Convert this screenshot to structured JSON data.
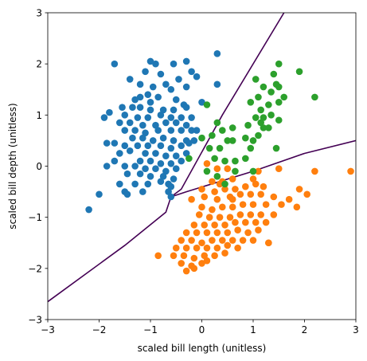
{
  "chart_data": {
    "type": "scatter",
    "title": "",
    "xlabel": "scaled bill length (unitless)",
    "ylabel": "scaled bill depth (unitless)",
    "xlim": [
      -3,
      3
    ],
    "ylim": [
      -3,
      3
    ],
    "xticks": [
      -3,
      -2,
      -1,
      0,
      1,
      2,
      3
    ],
    "yticks": [
      -3,
      -2,
      -1,
      0,
      1,
      2,
      3
    ],
    "grid": false,
    "legend": "none",
    "series": [
      {
        "color": "#1f77b4",
        "points": [
          [
            -1.7,
            2.0
          ],
          [
            -1.0,
            2.05
          ],
          [
            -0.9,
            2.0
          ],
          [
            -0.55,
            2.0
          ],
          [
            -0.3,
            2.05
          ],
          [
            -0.2,
            1.85
          ],
          [
            -0.1,
            1.75
          ],
          [
            0.3,
            2.2
          ],
          [
            -1.4,
            1.7
          ],
          [
            -1.1,
            1.85
          ],
          [
            -0.8,
            1.8
          ],
          [
            -0.45,
            1.7
          ],
          [
            -0.7,
            1.6
          ],
          [
            -1.2,
            1.6
          ],
          [
            -0.95,
            1.55
          ],
          [
            -0.3,
            1.55
          ],
          [
            -0.6,
            1.5
          ],
          [
            -1.2,
            1.35
          ],
          [
            -1.05,
            1.4
          ],
          [
            -0.85,
            1.35
          ],
          [
            -0.5,
            1.3
          ],
          [
            -0.35,
            1.2
          ],
          [
            -1.3,
            1.3
          ],
          [
            0.0,
            1.25
          ],
          [
            0.3,
            1.6
          ],
          [
            -1.55,
            1.15
          ],
          [
            -1.35,
            1.15
          ],
          [
            -1.2,
            1.15
          ],
          [
            -1.0,
            1.1
          ],
          [
            -0.75,
            1.1
          ],
          [
            -0.55,
            1.1
          ],
          [
            -0.3,
            1.15
          ],
          [
            -1.8,
            1.05
          ],
          [
            -1.5,
            1.0
          ],
          [
            -1.25,
            0.95
          ],
          [
            -1.05,
            0.95
          ],
          [
            -0.8,
            1.0
          ],
          [
            -0.6,
            0.95
          ],
          [
            -0.4,
            0.95
          ],
          [
            -0.2,
            0.95
          ],
          [
            -1.9,
            0.95
          ],
          [
            -1.6,
            0.85
          ],
          [
            -1.4,
            0.85
          ],
          [
            -1.15,
            0.8
          ],
          [
            -0.9,
            0.8
          ],
          [
            -0.7,
            0.85
          ],
          [
            -0.5,
            0.85
          ],
          [
            -0.3,
            0.8
          ],
          [
            -1.5,
            0.7
          ],
          [
            -1.3,
            0.7
          ],
          [
            -1.1,
            0.65
          ],
          [
            -0.85,
            0.7
          ],
          [
            -0.6,
            0.7
          ],
          [
            -0.4,
            0.7
          ],
          [
            -0.2,
            0.7
          ],
          [
            -0.1,
            0.7
          ],
          [
            -1.35,
            0.55
          ],
          [
            -1.15,
            0.55
          ],
          [
            -0.95,
            0.5
          ],
          [
            -0.75,
            0.55
          ],
          [
            -0.55,
            0.5
          ],
          [
            -0.3,
            0.5
          ],
          [
            -1.7,
            0.45
          ],
          [
            -1.5,
            0.4
          ],
          [
            -1.25,
            0.4
          ],
          [
            -1.05,
            0.4
          ],
          [
            -0.8,
            0.4
          ],
          [
            -0.6,
            0.35
          ],
          [
            -0.4,
            0.4
          ],
          [
            -1.85,
            0.45
          ],
          [
            -1.6,
            0.25
          ],
          [
            -1.4,
            0.3
          ],
          [
            -1.1,
            0.25
          ],
          [
            -0.9,
            0.25
          ],
          [
            -0.7,
            0.2
          ],
          [
            -0.5,
            0.2
          ],
          [
            -0.3,
            0.25
          ],
          [
            -1.7,
            0.1
          ],
          [
            -1.2,
            0.1
          ],
          [
            -1.0,
            0.1
          ],
          [
            -0.8,
            0.05
          ],
          [
            -0.6,
            0.05
          ],
          [
            -0.4,
            0.1
          ],
          [
            -1.85,
            0.0
          ],
          [
            -1.5,
            0.0
          ],
          [
            -1.3,
            0.0
          ],
          [
            -1.1,
            -0.05
          ],
          [
            -0.9,
            -0.05
          ],
          [
            -0.7,
            -0.1
          ],
          [
            -0.5,
            -0.05
          ],
          [
            -1.45,
            -0.15
          ],
          [
            -1.2,
            -0.15
          ],
          [
            -1.0,
            -0.2
          ],
          [
            -0.75,
            -0.2
          ],
          [
            -0.55,
            -0.25
          ],
          [
            -1.6,
            -0.35
          ],
          [
            -1.3,
            -0.35
          ],
          [
            -1.05,
            -0.35
          ],
          [
            -0.8,
            -0.3
          ],
          [
            -0.6,
            -0.4
          ],
          [
            -1.5,
            -0.5
          ],
          [
            -1.15,
            -0.5
          ],
          [
            -0.65,
            -0.5
          ],
          [
            -0.6,
            -0.6
          ],
          [
            -2.0,
            -0.55
          ],
          [
            -1.45,
            -0.55
          ],
          [
            -2.2,
            -0.85
          ],
          [
            -1.0,
            1.25
          ],
          [
            -0.25,
            0.45
          ],
          [
            -0.15,
            0.5
          ],
          [
            -0.65,
            -0.35
          ]
        ]
      },
      {
        "color": "#ff7f0e",
        "points": [
          [
            0.1,
            0.05
          ],
          [
            0.3,
            -0.05
          ],
          [
            0.5,
            -0.05
          ],
          [
            0.6,
            -0.25
          ],
          [
            0.4,
            -0.3
          ],
          [
            0.2,
            -0.3
          ],
          [
            0.0,
            -0.45
          ],
          [
            0.25,
            -0.5
          ],
          [
            0.45,
            -0.45
          ],
          [
            0.65,
            -0.45
          ],
          [
            0.85,
            -0.4
          ],
          [
            1.05,
            -0.35
          ],
          [
            1.2,
            -0.4
          ],
          [
            1.0,
            -0.25
          ],
          [
            1.1,
            -0.1
          ],
          [
            1.5,
            -0.05
          ],
          [
            2.2,
            -0.1
          ],
          [
            2.9,
            -0.1
          ],
          [
            1.9,
            -0.45
          ],
          [
            -0.2,
            -0.65
          ],
          [
            0.05,
            -0.6
          ],
          [
            0.3,
            -0.65
          ],
          [
            0.55,
            -0.6
          ],
          [
            0.75,
            -0.55
          ],
          [
            0.95,
            -0.55
          ],
          [
            1.15,
            -0.55
          ],
          [
            1.4,
            -0.6
          ],
          [
            1.7,
            -0.65
          ],
          [
            2.05,
            -0.55
          ],
          [
            0.0,
            -0.8
          ],
          [
            0.2,
            -0.85
          ],
          [
            0.4,
            -0.8
          ],
          [
            0.6,
            -0.8
          ],
          [
            0.8,
            -0.75
          ],
          [
            1.0,
            -0.75
          ],
          [
            1.25,
            -0.75
          ],
          [
            1.55,
            -0.75
          ],
          [
            1.85,
            -0.8
          ],
          [
            -0.05,
            -0.95
          ],
          [
            0.15,
            -1.0
          ],
          [
            0.35,
            -1.0
          ],
          [
            0.55,
            -1.0
          ],
          [
            0.75,
            -0.95
          ],
          [
            0.95,
            -0.95
          ],
          [
            1.15,
            -0.95
          ],
          [
            1.4,
            -0.95
          ],
          [
            -0.15,
            -1.15
          ],
          [
            0.05,
            -1.15
          ],
          [
            0.25,
            -1.15
          ],
          [
            0.45,
            -1.15
          ],
          [
            0.65,
            -1.1
          ],
          [
            0.85,
            -1.1
          ],
          [
            1.05,
            -1.1
          ],
          [
            1.25,
            -1.1
          ],
          [
            -0.3,
            -1.3
          ],
          [
            -0.1,
            -1.3
          ],
          [
            0.1,
            -1.3
          ],
          [
            0.3,
            -1.3
          ],
          [
            0.5,
            -1.3
          ],
          [
            0.7,
            -1.25
          ],
          [
            0.9,
            -1.3
          ],
          [
            1.1,
            -1.25
          ],
          [
            -0.4,
            -1.45
          ],
          [
            -0.2,
            -1.45
          ],
          [
            0.0,
            -1.5
          ],
          [
            0.2,
            -1.45
          ],
          [
            0.4,
            -1.45
          ],
          [
            0.6,
            -1.45
          ],
          [
            0.8,
            -1.45
          ],
          [
            1.0,
            -1.45
          ],
          [
            1.3,
            -1.5
          ],
          [
            -0.5,
            -1.6
          ],
          [
            -0.3,
            -1.6
          ],
          [
            -0.1,
            -1.6
          ],
          [
            0.1,
            -1.6
          ],
          [
            0.3,
            -1.6
          ],
          [
            0.5,
            -1.55
          ],
          [
            0.7,
            -1.6
          ],
          [
            1.3,
            -1.5
          ],
          [
            -0.55,
            -1.75
          ],
          [
            -0.35,
            -1.75
          ],
          [
            -0.15,
            -1.8
          ],
          [
            0.05,
            -1.75
          ],
          [
            0.25,
            -1.75
          ],
          [
            0.45,
            -1.7
          ],
          [
            -0.85,
            -1.75
          ],
          [
            -0.4,
            -1.9
          ],
          [
            -0.2,
            -1.95
          ],
          [
            0.0,
            -1.9
          ],
          [
            -0.3,
            -2.05
          ],
          [
            -0.15,
            -2.0
          ],
          [
            0.1,
            -1.85
          ],
          [
            0.6,
            -0.65
          ],
          [
            0.35,
            -0.35
          ]
        ]
      },
      {
        "color": "#2ca02c",
        "points": [
          [
            0.0,
            0.55
          ],
          [
            0.3,
            0.85
          ],
          [
            0.2,
            0.6
          ],
          [
            0.4,
            0.7
          ],
          [
            0.6,
            0.75
          ],
          [
            0.15,
            0.35
          ],
          [
            0.35,
            0.35
          ],
          [
            0.5,
            0.5
          ],
          [
            0.25,
            0.15
          ],
          [
            0.45,
            0.1
          ],
          [
            0.65,
            0.1
          ],
          [
            -0.25,
            0.15
          ],
          [
            0.1,
            -0.1
          ],
          [
            0.3,
            -0.2
          ],
          [
            0.45,
            -0.35
          ],
          [
            0.65,
            -0.1
          ],
          [
            0.85,
            0.15
          ],
          [
            1.0,
            -0.1
          ],
          [
            0.95,
            0.35
          ],
          [
            1.1,
            0.6
          ],
          [
            1.0,
            0.5
          ],
          [
            1.2,
            0.75
          ],
          [
            0.9,
            0.8
          ],
          [
            1.05,
            0.95
          ],
          [
            1.2,
            0.95
          ],
          [
            1.35,
            1.0
          ],
          [
            1.15,
            1.1
          ],
          [
            1.3,
            1.2
          ],
          [
            1.5,
            1.25
          ],
          [
            1.35,
            1.45
          ],
          [
            1.5,
            1.55
          ],
          [
            1.6,
            1.35
          ],
          [
            0.95,
            1.25
          ],
          [
            1.1,
            1.35
          ],
          [
            1.2,
            1.55
          ],
          [
            1.05,
            1.7
          ],
          [
            1.4,
            1.8
          ],
          [
            1.45,
            1.6
          ],
          [
            1.9,
            1.85
          ],
          [
            2.2,
            1.35
          ],
          [
            1.5,
            0.9
          ],
          [
            1.3,
            0.75
          ],
          [
            1.15,
            0.85
          ],
          [
            1.45,
            0.35
          ],
          [
            0.85,
            0.55
          ],
          [
            1.5,
            2.0
          ],
          [
            0.1,
            1.2
          ],
          [
            0.6,
            0.5
          ]
        ]
      }
    ],
    "boundaries": [
      {
        "color": "#440154",
        "points": [
          [
            -3,
            -2.65
          ],
          [
            -1.5,
            -1.55
          ],
          [
            -0.7,
            -0.9
          ],
          [
            -0.6,
            -0.6
          ],
          [
            -0.4,
            -0.45
          ],
          [
            0.4,
            1.0
          ],
          [
            1.6,
            3.0
          ]
        ]
      },
      {
        "color": "#440154",
        "points": [
          [
            -0.6,
            -0.6
          ],
          [
            -0.3,
            -0.5
          ],
          [
            1.0,
            -0.1
          ],
          [
            2.0,
            0.25
          ],
          [
            3,
            0.5
          ]
        ]
      }
    ]
  }
}
